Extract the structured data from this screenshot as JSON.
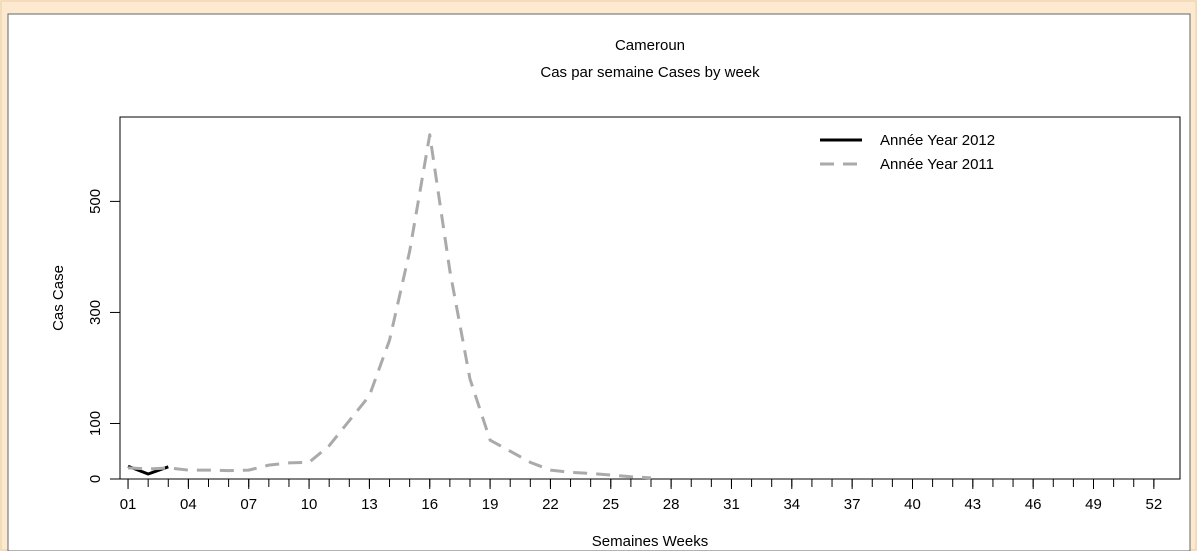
{
  "chart_data": {
    "type": "line",
    "title": "Cameroun",
    "subtitle": "Cas par semaine Cases by week",
    "x_label": "Semaines Weeks",
    "y_label": "Cas Case",
    "series": [
      {
        "name": "Année Year 2012",
        "color": "#000000",
        "style": "solid",
        "x": [
          1,
          2,
          3
        ],
        "values": [
          23,
          9,
          22
        ]
      },
      {
        "name": "Année Year 2011",
        "color": "#aaaaaa",
        "style": "dashed",
        "x": [
          1,
          2,
          3,
          4,
          5,
          6,
          7,
          8,
          9,
          10,
          11,
          12,
          13,
          14,
          15,
          16,
          17,
          18,
          19,
          20,
          21,
          22,
          23,
          24,
          25,
          26,
          27
        ],
        "values": [
          20,
          18,
          20,
          16,
          16,
          15,
          16,
          25,
          29,
          30,
          60,
          105,
          150,
          250,
          410,
          620,
          375,
          180,
          70,
          50,
          30,
          16,
          12,
          10,
          7,
          4,
          2
        ]
      }
    ],
    "xlim": [
      0.6,
      53.3
    ],
    "xticks": [
      {
        "value": 1,
        "label": "01"
      },
      {
        "value": 4,
        "label": "04"
      },
      {
        "value": 7,
        "label": "07"
      },
      10,
      13,
      16,
      19,
      22,
      25,
      28,
      31,
      34,
      37,
      40,
      43,
      46,
      49,
      52
    ],
    "ylim": [
      0,
      652
    ],
    "yticks": [
      0,
      100,
      300,
      500
    ],
    "legend": "topright"
  }
}
